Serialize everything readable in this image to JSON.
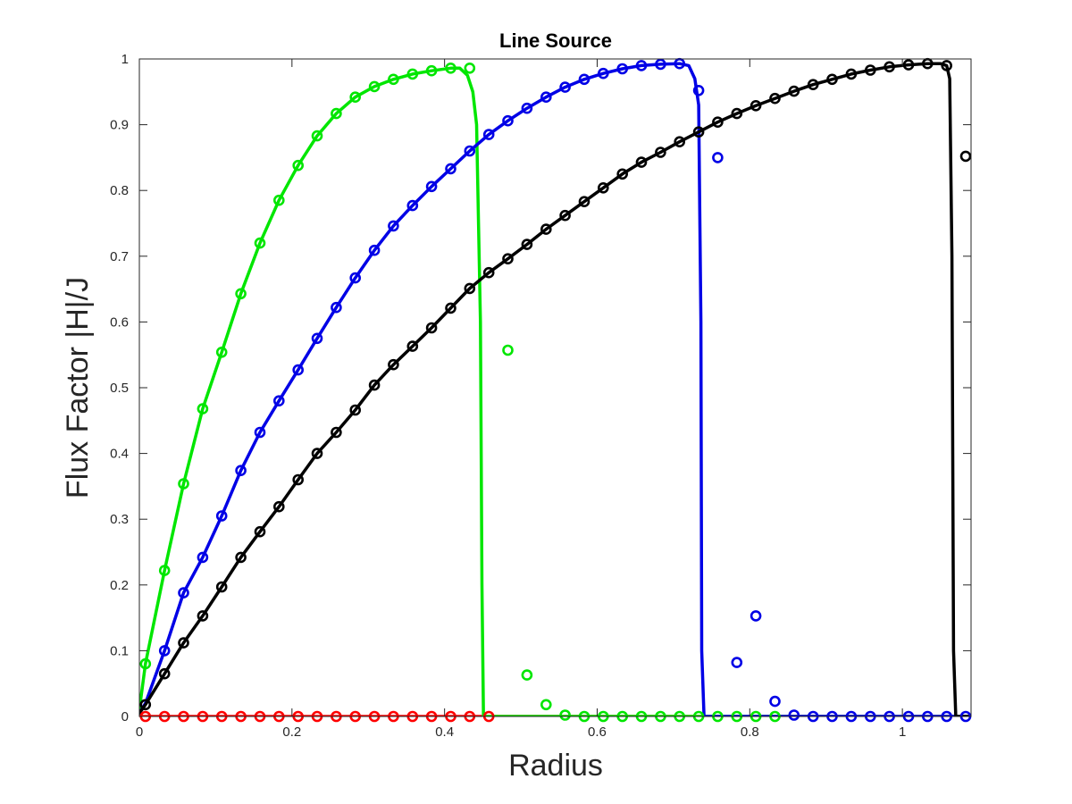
{
  "chart_data": {
    "type": "line",
    "title": "Line Source",
    "xlabel": "Radius",
    "ylabel": "Flux Factor |H|/J",
    "xlim": [
      0,
      1.09
    ],
    "ylim": [
      0,
      1
    ],
    "xticks": [
      0,
      0.2,
      0.4,
      0.6,
      0.8,
      1
    ],
    "xtick_labels": [
      "0",
      "0.2",
      "0.4",
      "0.6",
      "0.8",
      "1"
    ],
    "yticks": [
      0,
      0.1,
      0.2,
      0.3,
      0.4,
      0.5,
      0.6,
      0.7,
      0.8,
      0.9,
      1
    ],
    "ytick_labels": [
      "0",
      "0.1",
      "0.2",
      "0.3",
      "0.4",
      "0.5",
      "0.6",
      "0.7",
      "0.8",
      "0.9",
      "1"
    ],
    "grid": false,
    "legend": null,
    "series": [
      {
        "color": "#ff0000",
        "line": {
          "x": [
            0,
            1.09
          ],
          "y": [
            0,
            0
          ]
        },
        "markers": {
          "x": [
            0.008,
            0.033,
            0.058,
            0.083,
            0.108,
            0.133,
            0.158,
            0.183,
            0.208,
            0.233,
            0.258,
            0.283,
            0.308,
            0.333,
            0.358,
            0.383,
            0.408,
            0.433,
            0.458
          ],
          "y": [
            0,
            0,
            0,
            0,
            0,
            0,
            0,
            0,
            0,
            0,
            0,
            0,
            0,
            0,
            0,
            0,
            0,
            0,
            0
          ]
        }
      },
      {
        "color": "#00e600",
        "line": {
          "x": [
            0,
            0.008,
            0.033,
            0.058,
            0.083,
            0.108,
            0.133,
            0.158,
            0.183,
            0.208,
            0.233,
            0.258,
            0.283,
            0.308,
            0.333,
            0.358,
            0.383,
            0.408,
            0.42,
            0.43,
            0.437,
            0.442,
            0.447,
            0.449,
            0.451,
            0.455,
            0.5,
            0.6,
            0.7,
            0.8,
            0.9,
            1.0,
            1.09
          ],
          "y": [
            0.01,
            0.08,
            0.222,
            0.354,
            0.468,
            0.554,
            0.643,
            0.72,
            0.785,
            0.838,
            0.883,
            0.917,
            0.942,
            0.958,
            0.969,
            0.977,
            0.982,
            0.986,
            0.986,
            0.975,
            0.95,
            0.9,
            0.6,
            0.2,
            0.0,
            0,
            0,
            0,
            0,
            0,
            0,
            0,
            0
          ]
        },
        "markers": {
          "x": [
            0.008,
            0.033,
            0.058,
            0.083,
            0.108,
            0.133,
            0.158,
            0.183,
            0.208,
            0.233,
            0.258,
            0.283,
            0.308,
            0.333,
            0.358,
            0.383,
            0.408,
            0.433,
            0.483,
            0.508,
            0.533,
            0.558,
            0.583,
            0.608,
            0.633,
            0.658,
            0.683,
            0.708,
            0.733,
            0.758,
            0.783,
            0.808,
            0.833
          ],
          "y": [
            0.08,
            0.222,
            0.354,
            0.468,
            0.554,
            0.643,
            0.72,
            0.785,
            0.838,
            0.883,
            0.917,
            0.942,
            0.958,
            0.969,
            0.977,
            0.982,
            0.986,
            0.986,
            0.557,
            0.063,
            0.018,
            0.002,
            0,
            0,
            0,
            0,
            0,
            0,
            0,
            0,
            0,
            0,
            0
          ]
        }
      },
      {
        "color": "#0000e6",
        "line": {
          "x": [
            0,
            0.008,
            0.033,
            0.058,
            0.083,
            0.108,
            0.133,
            0.158,
            0.183,
            0.208,
            0.233,
            0.258,
            0.283,
            0.308,
            0.333,
            0.358,
            0.383,
            0.408,
            0.433,
            0.458,
            0.483,
            0.508,
            0.533,
            0.558,
            0.583,
            0.608,
            0.633,
            0.658,
            0.683,
            0.708,
            0.72,
            0.728,
            0.733,
            0.736,
            0.737,
            0.74,
            0.8,
            0.9,
            1.0,
            1.09
          ],
          "y": [
            0.005,
            0.02,
            0.1,
            0.188,
            0.242,
            0.305,
            0.374,
            0.432,
            0.48,
            0.527,
            0.575,
            0.622,
            0.667,
            0.709,
            0.746,
            0.777,
            0.806,
            0.833,
            0.86,
            0.885,
            0.906,
            0.925,
            0.942,
            0.957,
            0.969,
            0.978,
            0.985,
            0.99,
            0.992,
            0.993,
            0.99,
            0.97,
            0.93,
            0.6,
            0.1,
            0,
            0,
            0,
            0,
            0
          ]
        },
        "markers": {
          "x": [
            0.033,
            0.058,
            0.083,
            0.108,
            0.133,
            0.158,
            0.183,
            0.208,
            0.233,
            0.258,
            0.283,
            0.308,
            0.333,
            0.358,
            0.383,
            0.408,
            0.433,
            0.458,
            0.483,
            0.508,
            0.533,
            0.558,
            0.583,
            0.608,
            0.633,
            0.658,
            0.683,
            0.708,
            0.733,
            0.758,
            0.783,
            0.808,
            0.833,
            0.858,
            0.883,
            0.908,
            0.933,
            0.958,
            0.983,
            1.008,
            1.033,
            1.058,
            1.083
          ],
          "y": [
            0.1,
            0.188,
            0.242,
            0.305,
            0.374,
            0.432,
            0.48,
            0.527,
            0.575,
            0.622,
            0.667,
            0.709,
            0.746,
            0.777,
            0.806,
            0.833,
            0.86,
            0.885,
            0.906,
            0.925,
            0.942,
            0.957,
            0.969,
            0.978,
            0.985,
            0.99,
            0.992,
            0.993,
            0.952,
            0.85,
            0.082,
            0.153,
            0.023,
            0.002,
            0,
            0,
            0,
            0,
            0,
            0,
            0,
            0,
            0
          ]
        }
      },
      {
        "color": "#000000",
        "line": {
          "x": [
            0,
            0.008,
            0.033,
            0.058,
            0.083,
            0.108,
            0.133,
            0.158,
            0.183,
            0.208,
            0.233,
            0.258,
            0.283,
            0.308,
            0.333,
            0.358,
            0.383,
            0.408,
            0.433,
            0.458,
            0.483,
            0.508,
            0.533,
            0.558,
            0.583,
            0.608,
            0.633,
            0.658,
            0.683,
            0.708,
            0.733,
            0.758,
            0.783,
            0.808,
            0.833,
            0.858,
            0.883,
            0.908,
            0.933,
            0.958,
            0.983,
            1.008,
            1.033,
            1.05,
            1.058,
            1.062,
            1.065,
            1.067,
            1.07,
            1.09
          ],
          "y": [
            0.005,
            0.018,
            0.065,
            0.112,
            0.153,
            0.197,
            0.242,
            0.281,
            0.319,
            0.36,
            0.4,
            0.432,
            0.466,
            0.504,
            0.535,
            0.563,
            0.591,
            0.621,
            0.651,
            0.675,
            0.696,
            0.718,
            0.741,
            0.762,
            0.783,
            0.804,
            0.825,
            0.843,
            0.858,
            0.874,
            0.889,
            0.904,
            0.917,
            0.929,
            0.94,
            0.951,
            0.961,
            0.969,
            0.977,
            0.983,
            0.988,
            0.991,
            0.993,
            0.993,
            0.99,
            0.97,
            0.7,
            0.1,
            0,
            0
          ]
        },
        "markers": {
          "x": [
            0.008,
            0.033,
            0.058,
            0.083,
            0.108,
            0.133,
            0.158,
            0.183,
            0.208,
            0.233,
            0.258,
            0.283,
            0.308,
            0.333,
            0.358,
            0.383,
            0.408,
            0.433,
            0.458,
            0.483,
            0.508,
            0.533,
            0.558,
            0.583,
            0.608,
            0.633,
            0.658,
            0.683,
            0.708,
            0.733,
            0.758,
            0.783,
            0.808,
            0.833,
            0.858,
            0.883,
            0.908,
            0.933,
            0.958,
            0.983,
            1.008,
            1.033,
            1.058,
            1.083
          ],
          "y": [
            0.018,
            0.065,
            0.112,
            0.153,
            0.197,
            0.242,
            0.281,
            0.319,
            0.36,
            0.4,
            0.432,
            0.466,
            0.504,
            0.535,
            0.563,
            0.591,
            0.621,
            0.651,
            0.675,
            0.696,
            0.718,
            0.741,
            0.762,
            0.783,
            0.804,
            0.825,
            0.843,
            0.858,
            0.874,
            0.889,
            0.904,
            0.917,
            0.929,
            0.94,
            0.951,
            0.961,
            0.969,
            0.977,
            0.983,
            0.988,
            0.991,
            0.993,
            0.99,
            0.852
          ]
        }
      }
    ]
  }
}
